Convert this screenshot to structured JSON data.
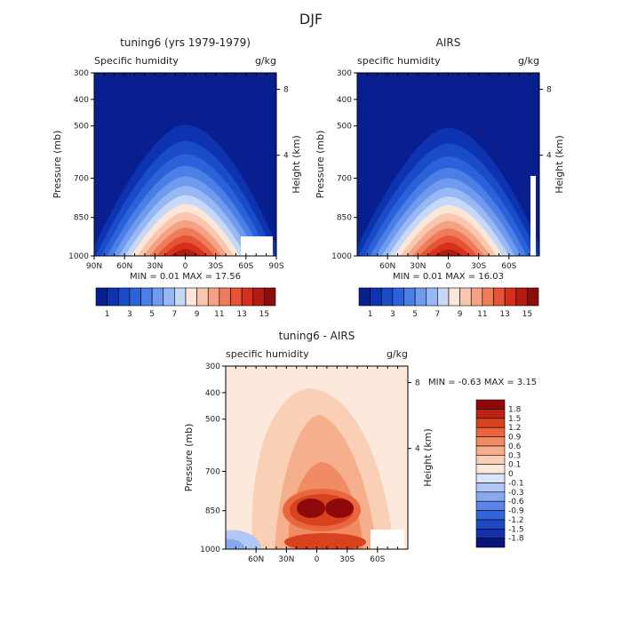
{
  "suptitle": "DJF",
  "colors": {
    "abs_levels": [
      "#0a1f8f",
      "#0d33b0",
      "#1a4cc8",
      "#2b62d9",
      "#4a7fe6",
      "#6f9aee",
      "#98b8f3",
      "#c6d8f8",
      "#fbe6d8",
      "#f8c7ad",
      "#f4a283",
      "#ee7b5a",
      "#e65436",
      "#d6301d",
      "#b31a10",
      "#8b0d0d"
    ],
    "diff_levels": [
      "#08137a",
      "#1430a8",
      "#1f48c6",
      "#3464db",
      "#5b85e8",
      "#88a8f0",
      "#b2c7f5",
      "#d9e5fb",
      "#fde9dc",
      "#f9cfb6",
      "#f5af8d",
      "#f08b63",
      "#e9663f",
      "#d9421f",
      "#b9230f",
      "#8e0a0a"
    ],
    "missing": "#ffffff"
  },
  "chart_data": [
    {
      "type": "contour",
      "id": "model",
      "title": "tuning6 (yrs 1979-1979)",
      "left_label": "Specific humidity",
      "right_label": "g/kg",
      "ylabel": "Pressure (mb)",
      "y2label": "Height (km)",
      "yticks": [
        "300",
        "400",
        "500",
        "700",
        "850",
        "1000"
      ],
      "y2ticks": [
        "8",
        "4"
      ],
      "xticks": [
        "90N",
        "60N",
        "30N",
        "0",
        "30S",
        "60S",
        "90S"
      ],
      "stats": "MIN =    0.01   MAX =   17.56",
      "colorbar_labels": [
        "1",
        "3",
        "5",
        "7",
        "9",
        "11",
        "13",
        "15"
      ],
      "peak": 17.56
    },
    {
      "type": "contour",
      "id": "obs",
      "title": "AIRS",
      "left_label": "specific humidity",
      "right_label": "g/kg",
      "ylabel": "Pressure (mb)",
      "y2label": "Height (km)",
      "yticks": [
        "300",
        "400",
        "500",
        "700",
        "850",
        "1000"
      ],
      "y2ticks": [
        "8",
        "4"
      ],
      "xticks": [
        "60N",
        "30N",
        "0",
        "30S",
        "60S"
      ],
      "stats": "MIN =    0.01   MAX =   16.03",
      "colorbar_labels": [
        "1",
        "3",
        "5",
        "7",
        "9",
        "11",
        "13",
        "15"
      ],
      "peak": 16.03
    },
    {
      "type": "contour",
      "id": "diff",
      "title": "tuning6 - AIRS",
      "left_label": "specific humidity",
      "right_label": "g/kg",
      "ylabel": "Pressure (mb)",
      "y2label": "Height (km)",
      "yticks": [
        "300",
        "400",
        "500",
        "700",
        "850",
        "1000"
      ],
      "y2ticks": [
        "8",
        "4"
      ],
      "xticks": [
        "60N",
        "30N",
        "0",
        "30S",
        "60S"
      ],
      "stats": "MIN =   -0.63   MAX =    3.15",
      "colorbar_labels": [
        "1.8",
        "1.5",
        "1.2",
        "0.9",
        "0.6",
        "0.3",
        "0.1",
        "0",
        "-0.1",
        "-0.3",
        "-0.6",
        "-0.9",
        "-1.2",
        "-1.5",
        "-1.8"
      ]
    }
  ]
}
